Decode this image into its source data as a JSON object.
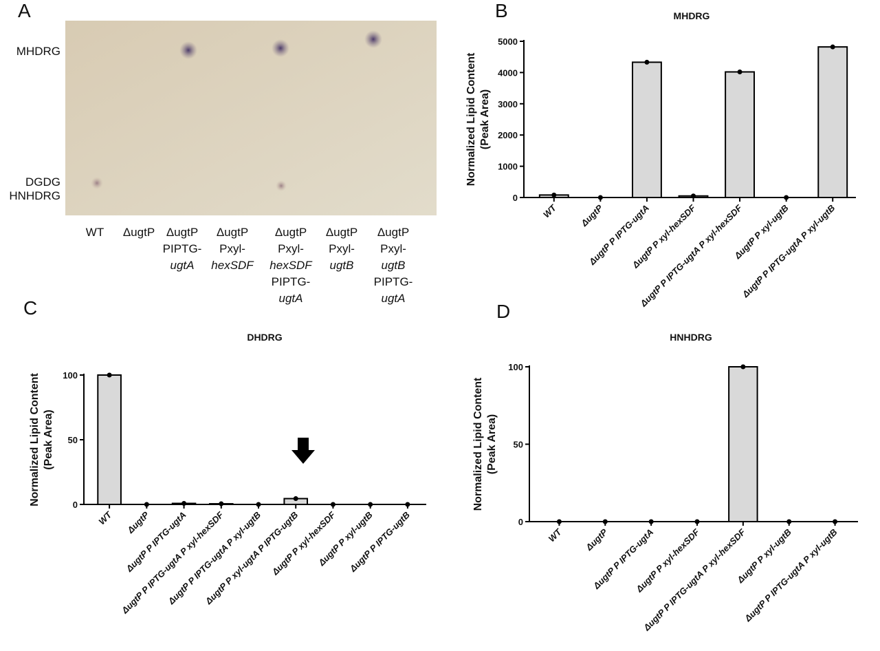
{
  "panels": {
    "a": "A",
    "b": "B",
    "c": "C",
    "d": "D"
  },
  "tlc": {
    "spot_labels": [
      "MHDRG",
      "DGDG",
      "HNHDRG"
    ],
    "lanes": [
      [
        "WT"
      ],
      [
        "ΔugtP"
      ],
      [
        "ΔugtP",
        "PIPTG-",
        "ugtA"
      ],
      [
        "ΔugtP",
        "Pxyl-",
        "hexSDF"
      ],
      [
        "ΔugtP",
        "Pxyl-",
        "hexSDF",
        "PIPTG-",
        "ugtA"
      ],
      [
        "ΔugtP",
        "Pxyl-",
        "ugtB"
      ],
      [
        "ΔugtP",
        "Pxyl-",
        "ugtB",
        "PIPTG-",
        "ugtA"
      ]
    ]
  },
  "chart_data": [
    {
      "type": "bar",
      "title": "MHDRG",
      "ylabel": [
        "Normalized Lipid Content",
        "(Peak Area)"
      ],
      "categories": [
        "WT",
        "ΔugtP",
        "ΔugtP P IPTG-ugtA",
        "ΔugtP P xyl-hexSDF",
        "ΔugtP P IPTG-ugtA P xyl-hexSDF",
        "ΔugtP P xyl-ugtB",
        "ΔugtP P IPTG-ugtA P xyl-ugtB"
      ],
      "values": [
        80,
        0,
        4330,
        50,
        4020,
        0,
        4820
      ],
      "color": "#d9d9d9",
      "ylim": [
        0,
        5000
      ],
      "yticks": [
        0,
        1000,
        2000,
        3000,
        4000,
        5000
      ]
    },
    {
      "type": "bar",
      "title": "DHDRG",
      "ylabel": [
        "Normalized Lipid Content",
        "(Peak Area)"
      ],
      "categories": [
        "WT",
        "ΔugtP",
        "ΔugtP P IPTG-ugtA",
        "ΔugtP P IPTG-ugtA P xyl-hexSDF",
        "ΔugtP P IPTG-ugtA P xyl-ugtB",
        "ΔugtP P xyl-ugtA P IPTG-ugtB",
        "ΔugtP P xyl-hexSDF",
        "ΔugtP P xyl-ugtB",
        "ΔugtP P IPTG-ugtB"
      ],
      "values": [
        100,
        0,
        0.8,
        0.5,
        0,
        4.5,
        0,
        0,
        0
      ],
      "color": "#d9d9d9",
      "ylim": [
        0,
        100
      ],
      "yticks": [
        0,
        50,
        100
      ]
    },
    {
      "type": "bar",
      "title": "HNHDRG",
      "ylabel": [
        "Normalized Lipid Content",
        "(Peak Area)"
      ],
      "categories": [
        "WT",
        "ΔugtP",
        "ΔugtP P IPTG-ugtA",
        "ΔugtP P xyl-hexSDF",
        "ΔugtP P IPTG-ugtA P xyl-hexSDF",
        "ΔugtP P xyl-ugtB",
        "ΔugtP P IPTG-ugtA P xyl-ugtB"
      ],
      "values": [
        0,
        0,
        0,
        0,
        100,
        0,
        0
      ],
      "color": "#d9d9d9",
      "ylim": [
        0,
        100
      ],
      "yticks": [
        0,
        50,
        100
      ]
    }
  ]
}
